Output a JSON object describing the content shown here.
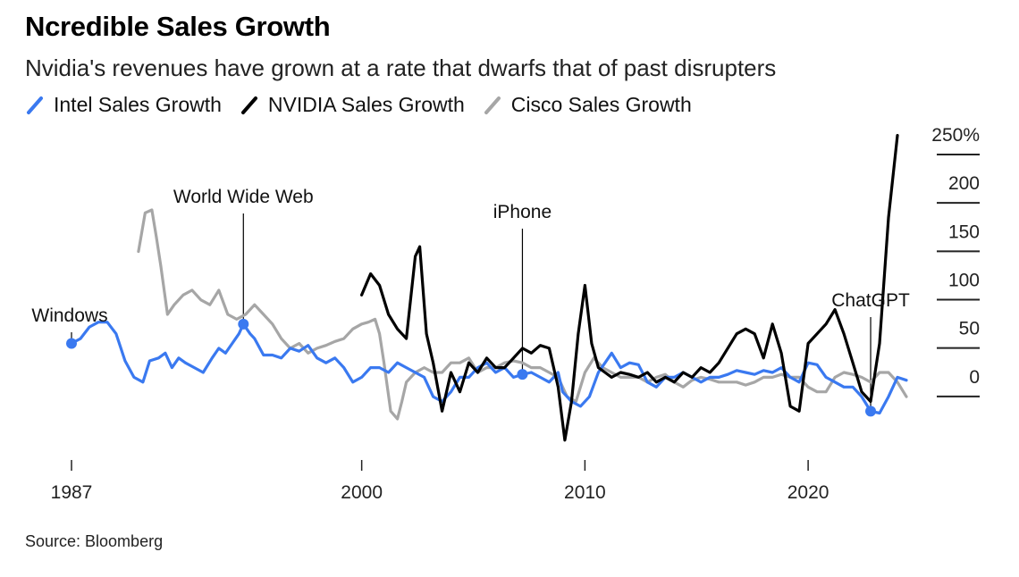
{
  "header": {
    "title": "Ncredible Sales Growth",
    "subtitle": "Nvidia's revenues have grown at a rate that dwarfs that of past disrupters"
  },
  "legend": [
    {
      "label": "Intel Sales Growth",
      "color": "#3a79f0",
      "icon": "slash-line-icon"
    },
    {
      "label": "NVIDIA Sales Growth",
      "color": "#000000",
      "icon": "slash-line-icon"
    },
    {
      "label": "Cisco Sales Growth",
      "color": "#a6a6a6",
      "icon": "slash-line-icon"
    }
  ],
  "source": "Source: Bloomberg",
  "chart_data": {
    "type": "line",
    "title": "Ncredible Sales Growth",
    "subtitle": "Nvidia's revenues have grown at a rate that dwarfs that of past disrupters",
    "xlabel": "",
    "ylabel": "",
    "xlim": [
      1987,
      2024
    ],
    "ylim": [
      -50,
      250
    ],
    "x_ticks": [
      {
        "value": 1987,
        "label": "1987"
      },
      {
        "value": 2000,
        "label": "2000"
      },
      {
        "value": 2010,
        "label": "2010"
      },
      {
        "value": 2020,
        "label": "2020"
      }
    ],
    "y_ticks": [
      {
        "value": 250,
        "label": "250%"
      },
      {
        "value": 200,
        "label": "200"
      },
      {
        "value": 150,
        "label": "150"
      },
      {
        "value": 100,
        "label": "100"
      },
      {
        "value": 50,
        "label": "50"
      },
      {
        "value": 0,
        "label": "0"
      }
    ],
    "grid": false,
    "legend_position": "top-left",
    "series": [
      {
        "name": "Intel Sales Growth",
        "color": "#3a79f0",
        "points": [
          [
            1987.0,
            40
          ],
          [
            1987.4,
            45
          ],
          [
            1987.8,
            57
          ],
          [
            1988.2,
            62
          ],
          [
            1988.6,
            62
          ],
          [
            1989.0,
            50
          ],
          [
            1989.4,
            22
          ],
          [
            1989.8,
            5
          ],
          [
            1990.2,
            0
          ],
          [
            1990.5,
            22
          ],
          [
            1990.9,
            25
          ],
          [
            1991.2,
            30
          ],
          [
            1991.5,
            15
          ],
          [
            1991.8,
            25
          ],
          [
            1992.1,
            20
          ],
          [
            1992.5,
            15
          ],
          [
            1992.9,
            10
          ],
          [
            1993.3,
            25
          ],
          [
            1993.6,
            35
          ],
          [
            1993.9,
            30
          ],
          [
            1994.2,
            40
          ],
          [
            1994.5,
            50
          ],
          [
            1994.7,
            60
          ],
          [
            1995.0,
            50
          ],
          [
            1995.2,
            45
          ],
          [
            1995.6,
            28
          ],
          [
            1996.0,
            28
          ],
          [
            1996.4,
            25
          ],
          [
            1996.8,
            35
          ],
          [
            1997.2,
            32
          ],
          [
            1997.6,
            38
          ],
          [
            1998.0,
            25
          ],
          [
            1998.4,
            20
          ],
          [
            1998.8,
            25
          ],
          [
            1999.2,
            15
          ],
          [
            1999.6,
            0
          ],
          [
            2000.0,
            5
          ],
          [
            2000.4,
            15
          ],
          [
            2000.8,
            15
          ],
          [
            2001.2,
            10
          ],
          [
            2001.6,
            20
          ],
          [
            2002.0,
            15
          ],
          [
            2002.4,
            10
          ],
          [
            2002.8,
            5
          ],
          [
            2003.2,
            -15
          ],
          [
            2003.6,
            -20
          ],
          [
            2004.0,
            -10
          ],
          [
            2004.4,
            5
          ],
          [
            2004.8,
            5
          ],
          [
            2005.2,
            15
          ],
          [
            2005.6,
            20
          ],
          [
            2006.0,
            10
          ],
          [
            2006.4,
            15
          ],
          [
            2006.8,
            5
          ],
          [
            2007.2,
            8
          ],
          [
            2007.6,
            10
          ],
          [
            2008.0,
            5
          ],
          [
            2008.4,
            0
          ],
          [
            2008.8,
            10
          ],
          [
            2009.0,
            -10
          ],
          [
            2009.4,
            -20
          ],
          [
            2009.8,
            -25
          ],
          [
            2010.2,
            -15
          ],
          [
            2010.6,
            10
          ],
          [
            2010.9,
            20
          ],
          [
            2011.2,
            30
          ],
          [
            2011.6,
            15
          ],
          [
            2012.0,
            20
          ],
          [
            2012.4,
            18
          ],
          [
            2012.8,
            0
          ],
          [
            2013.2,
            -5
          ],
          [
            2013.6,
            5
          ],
          [
            2014.0,
            5
          ],
          [
            2014.4,
            10
          ],
          [
            2014.8,
            5
          ],
          [
            2015.2,
            0
          ],
          [
            2015.6,
            5
          ],
          [
            2016.0,
            5
          ],
          [
            2016.4,
            8
          ],
          [
            2016.8,
            12
          ],
          [
            2017.2,
            10
          ],
          [
            2017.6,
            8
          ],
          [
            2018.0,
            12
          ],
          [
            2018.4,
            10
          ],
          [
            2018.8,
            15
          ],
          [
            2019.2,
            5
          ],
          [
            2019.6,
            0
          ],
          [
            2020.0,
            20
          ],
          [
            2020.4,
            18
          ],
          [
            2020.8,
            5
          ],
          [
            2021.2,
            0
          ],
          [
            2021.6,
            -5
          ],
          [
            2022.0,
            -5
          ],
          [
            2022.4,
            -15
          ],
          [
            2022.8,
            -30
          ],
          [
            2023.2,
            -32
          ],
          [
            2023.6,
            -15
          ],
          [
            2024.0,
            5
          ],
          [
            2024.4,
            2
          ]
        ]
      },
      {
        "name": "NVIDIA Sales Growth",
        "color": "#000000",
        "points": [
          [
            2000.0,
            90
          ],
          [
            2000.4,
            112
          ],
          [
            2000.8,
            100
          ],
          [
            2001.2,
            70
          ],
          [
            2001.6,
            55
          ],
          [
            2002.0,
            45
          ],
          [
            2002.4,
            130
          ],
          [
            2002.6,
            140
          ],
          [
            2002.9,
            50
          ],
          [
            2003.2,
            20
          ],
          [
            2003.6,
            -30
          ],
          [
            2004.0,
            10
          ],
          [
            2004.4,
            -10
          ],
          [
            2004.8,
            20
          ],
          [
            2005.2,
            10
          ],
          [
            2005.6,
            25
          ],
          [
            2006.0,
            15
          ],
          [
            2006.4,
            15
          ],
          [
            2006.8,
            25
          ],
          [
            2007.2,
            35
          ],
          [
            2007.6,
            30
          ],
          [
            2008.0,
            38
          ],
          [
            2008.4,
            35
          ],
          [
            2008.8,
            -5
          ],
          [
            2009.1,
            -60
          ],
          [
            2009.4,
            -20
          ],
          [
            2009.7,
            50
          ],
          [
            2010.0,
            100
          ],
          [
            2010.3,
            40
          ],
          [
            2010.6,
            15
          ],
          [
            2010.9,
            10
          ],
          [
            2011.2,
            5
          ],
          [
            2011.6,
            10
          ],
          [
            2012.0,
            8
          ],
          [
            2012.4,
            5
          ],
          [
            2012.8,
            10
          ],
          [
            2013.2,
            0
          ],
          [
            2013.6,
            5
          ],
          [
            2014.0,
            0
          ],
          [
            2014.4,
            10
          ],
          [
            2014.8,
            5
          ],
          [
            2015.2,
            15
          ],
          [
            2015.6,
            10
          ],
          [
            2016.0,
            20
          ],
          [
            2016.4,
            35
          ],
          [
            2016.8,
            50
          ],
          [
            2017.2,
            55
          ],
          [
            2017.6,
            50
          ],
          [
            2018.0,
            25
          ],
          [
            2018.4,
            60
          ],
          [
            2018.8,
            30
          ],
          [
            2019.2,
            -25
          ],
          [
            2019.6,
            -30
          ],
          [
            2020.0,
            40
          ],
          [
            2020.4,
            50
          ],
          [
            2020.8,
            60
          ],
          [
            2021.2,
            75
          ],
          [
            2021.6,
            50
          ],
          [
            2022.0,
            20
          ],
          [
            2022.4,
            -10
          ],
          [
            2022.8,
            -20
          ],
          [
            2023.2,
            40
          ],
          [
            2023.6,
            170
          ],
          [
            2024.0,
            255
          ]
        ]
      },
      {
        "name": "Cisco Sales Growth",
        "color": "#a6a6a6",
        "points": [
          [
            1990.0,
            135
          ],
          [
            1990.3,
            175
          ],
          [
            1990.6,
            178
          ],
          [
            1990.8,
            150
          ],
          [
            1991.0,
            120
          ],
          [
            1991.3,
            70
          ],
          [
            1991.6,
            80
          ],
          [
            1992.0,
            90
          ],
          [
            1992.4,
            95
          ],
          [
            1992.8,
            85
          ],
          [
            1993.2,
            80
          ],
          [
            1993.6,
            95
          ],
          [
            1994.0,
            70
          ],
          [
            1994.4,
            65
          ],
          [
            1994.8,
            70
          ],
          [
            1995.2,
            80
          ],
          [
            1995.6,
            70
          ],
          [
            1996.0,
            60
          ],
          [
            1996.4,
            45
          ],
          [
            1996.8,
            35
          ],
          [
            1997.2,
            40
          ],
          [
            1997.6,
            30
          ],
          [
            1998.0,
            35
          ],
          [
            1998.4,
            38
          ],
          [
            1998.8,
            42
          ],
          [
            1999.2,
            45
          ],
          [
            1999.6,
            55
          ],
          [
            2000.0,
            60
          ],
          [
            2000.3,
            62
          ],
          [
            2000.6,
            65
          ],
          [
            2000.8,
            50
          ],
          [
            2001.0,
            20
          ],
          [
            2001.3,
            -30
          ],
          [
            2001.6,
            -38
          ],
          [
            2001.8,
            -20
          ],
          [
            2002.0,
            0
          ],
          [
            2002.4,
            10
          ],
          [
            2002.8,
            15
          ],
          [
            2003.2,
            10
          ],
          [
            2003.6,
            10
          ],
          [
            2004.0,
            20
          ],
          [
            2004.4,
            20
          ],
          [
            2004.8,
            25
          ],
          [
            2005.2,
            10
          ],
          [
            2005.6,
            15
          ],
          [
            2006.0,
            15
          ],
          [
            2006.4,
            20
          ],
          [
            2006.8,
            22
          ],
          [
            2007.2,
            20
          ],
          [
            2007.6,
            15
          ],
          [
            2008.0,
            15
          ],
          [
            2008.4,
            10
          ],
          [
            2008.8,
            5
          ],
          [
            2009.2,
            -15
          ],
          [
            2009.6,
            -20
          ],
          [
            2010.0,
            10
          ],
          [
            2010.4,
            25
          ],
          [
            2010.8,
            15
          ],
          [
            2011.2,
            10
          ],
          [
            2011.6,
            5
          ],
          [
            2012.0,
            5
          ],
          [
            2012.4,
            5
          ],
          [
            2012.8,
            0
          ],
          [
            2013.2,
            5
          ],
          [
            2013.6,
            8
          ],
          [
            2014.0,
            0
          ],
          [
            2014.4,
            -5
          ],
          [
            2014.8,
            2
          ],
          [
            2015.2,
            5
          ],
          [
            2015.6,
            3
          ],
          [
            2016.0,
            0
          ],
          [
            2016.4,
            0
          ],
          [
            2016.8,
            0
          ],
          [
            2017.2,
            -3
          ],
          [
            2017.6,
            0
          ],
          [
            2018.0,
            5
          ],
          [
            2018.4,
            5
          ],
          [
            2018.8,
            8
          ],
          [
            2019.2,
            5
          ],
          [
            2019.6,
            5
          ],
          [
            2020.0,
            -5
          ],
          [
            2020.4,
            -10
          ],
          [
            2020.8,
            -10
          ],
          [
            2021.2,
            5
          ],
          [
            2021.6,
            10
          ],
          [
            2022.0,
            8
          ],
          [
            2022.4,
            5
          ],
          [
            2022.8,
            0
          ],
          [
            2023.2,
            10
          ],
          [
            2023.6,
            10
          ],
          [
            2024.0,
            0
          ],
          [
            2024.4,
            -15
          ]
        ]
      }
    ],
    "annotations": [
      {
        "label": "Windows",
        "x": 1987.0,
        "y": 40,
        "series": "Intel Sales Growth"
      },
      {
        "label": "World Wide Web",
        "x": 1994.7,
        "y": 60,
        "series": "Intel Sales Growth"
      },
      {
        "label": "iPhone",
        "x": 2007.2,
        "y": 8,
        "series": "Intel Sales Growth"
      },
      {
        "label": "ChatGPT",
        "x": 2022.8,
        "y": -30,
        "series": "Intel Sales Growth"
      }
    ]
  }
}
